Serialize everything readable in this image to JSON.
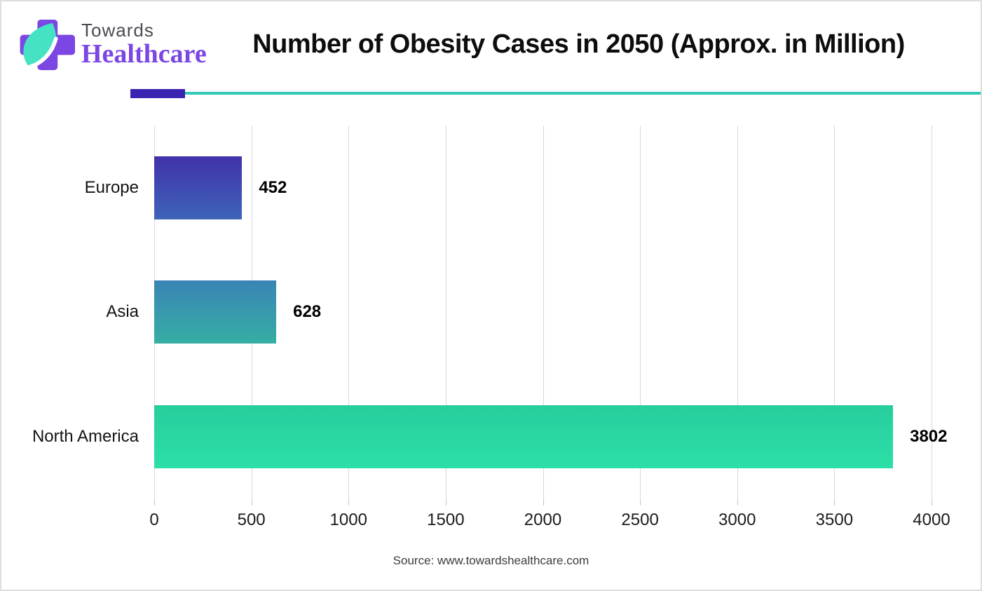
{
  "brand": {
    "name_top": "Towards",
    "name_bottom": "Healthcare"
  },
  "chart_data": {
    "type": "bar",
    "orientation": "horizontal",
    "title": "Number of Obesity Cases in 2050 (Approx. in Million)",
    "categories": [
      "Europe",
      "Asia",
      "North America"
    ],
    "values": [
      452,
      628,
      3802
    ],
    "value_labels": [
      "452",
      "628",
      "3802"
    ],
    "xlabel": "",
    "ylabel": "",
    "xlim": [
      0,
      4000
    ],
    "xticks": [
      0,
      500,
      1000,
      1500,
      2000,
      2500,
      3000,
      3500,
      4000
    ],
    "grid": "vertical",
    "legend": "none",
    "bar_gradients": [
      {
        "top": "#4132AB",
        "bottom": "#3E64B8"
      },
      {
        "top": "#3A84B6",
        "bottom": "#35AEA3"
      },
      {
        "top": "#27CE9D",
        "bottom": "#2CDFA7"
      }
    ]
  },
  "footer": {
    "source": "Source: www.towardshealthcare.com"
  },
  "theme": {
    "accent_purple": "#3B24B2",
    "accent_teal": "#2FC9B5",
    "brand_purple": "#7B46E3",
    "brand_gray": "#4B4B55",
    "leaf_mint": "#45E2C4",
    "grid_color": "#D9D9D9"
  }
}
